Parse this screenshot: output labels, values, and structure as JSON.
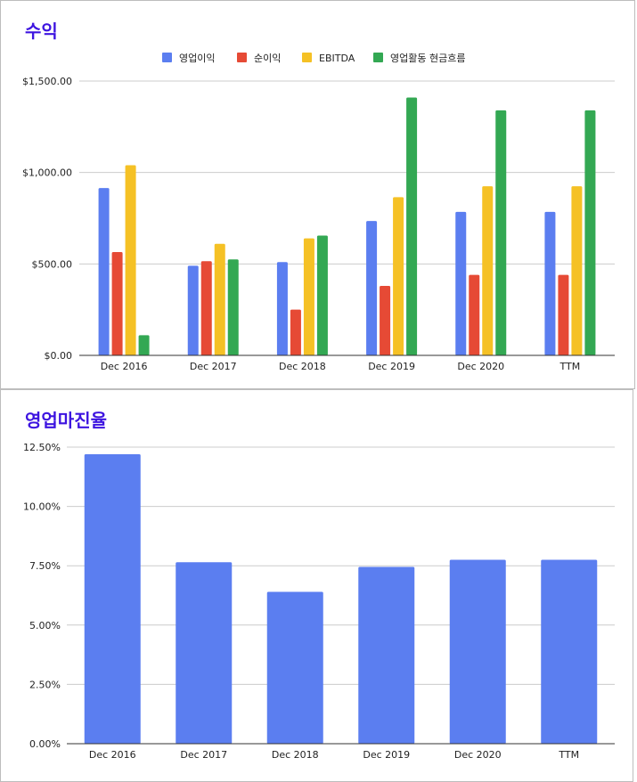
{
  "chart_data": [
    {
      "type": "bar",
      "title": "수익",
      "categories": [
        "Dec 2016",
        "Dec 2017",
        "Dec 2018",
        "Dec 2019",
        "Dec 2020",
        "TTM"
      ],
      "ylim": [
        0,
        1500
      ],
      "yticks": [
        "$0.00",
        "$500.00",
        "$1,000.00",
        "$1,500.00"
      ],
      "ytick_values": [
        0,
        500,
        1000,
        1500
      ],
      "grid": true,
      "legend_position": "top",
      "series": [
        {
          "name": "영업이익",
          "color": "#5b7ef0",
          "values": [
            915,
            490,
            510,
            735,
            785,
            785
          ]
        },
        {
          "name": "순이익",
          "color": "#e64a35",
          "values": [
            565,
            515,
            250,
            380,
            440,
            440
          ]
        },
        {
          "name": "EBITDA",
          "color": "#f5c125",
          "values": [
            1040,
            610,
            640,
            865,
            925,
            925
          ]
        },
        {
          "name": "영업활동 현금흐름",
          "color": "#33a853",
          "values": [
            110,
            525,
            655,
            1410,
            1340,
            1340
          ]
        }
      ]
    },
    {
      "type": "bar",
      "title": "영업마진율",
      "categories": [
        "Dec 2016",
        "Dec 2017",
        "Dec 2018",
        "Dec 2019",
        "Dec 2020",
        "TTM"
      ],
      "ylim": [
        0,
        12.5
      ],
      "yticks": [
        "0.00%",
        "2.50%",
        "5.00%",
        "7.50%",
        "10.00%",
        "12.50%"
      ],
      "ytick_values": [
        0,
        2.5,
        5,
        7.5,
        10,
        12.5
      ],
      "grid": true,
      "series": [
        {
          "color": "#5b7ef0",
          "values": [
            12.2,
            7.65,
            6.4,
            7.45,
            7.75,
            7.75
          ]
        }
      ]
    }
  ]
}
